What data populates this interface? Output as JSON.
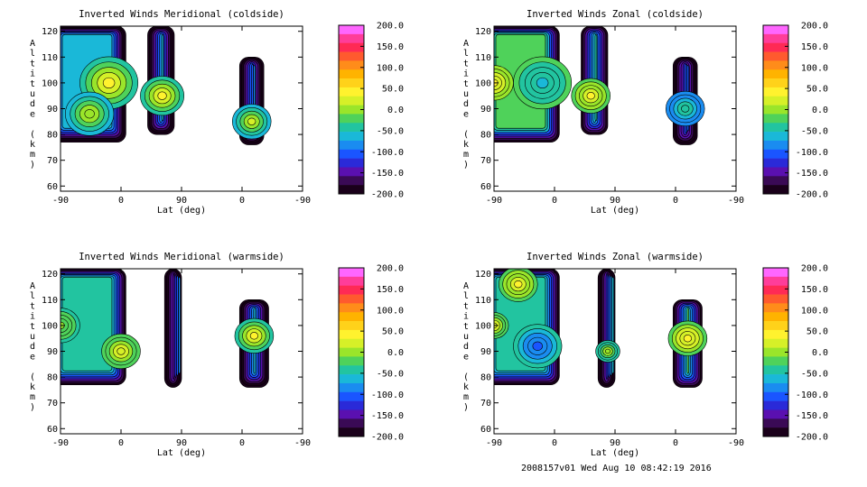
{
  "chart_data": [
    {
      "type": "heatmap",
      "title": "Inverted Winds Meridional (coldside)",
      "xlabel": "Lat (deg)",
      "ylabel": "Altitude (km)",
      "xticks": [
        "-90",
        "0",
        "90",
        "0",
        "-90"
      ],
      "yticks": [
        60,
        70,
        80,
        90,
        100,
        110,
        120
      ],
      "ylim": [
        58,
        122
      ],
      "colorbar": {
        "min": -200,
        "max": 200,
        "labels": [
          "200.0",
          "150.0",
          "100.0",
          "50.0",
          "0.0",
          "-50.0",
          "-100.0",
          "-150.0",
          "-200.0"
        ]
      },
      "blobs": [
        {
          "x0": -0.05,
          "x1": 0.27,
          "y0": 77,
          "y1": 122,
          "base": -70,
          "hot": [
            {
              "x": 0.2,
              "y": 100,
              "v": 40,
              "r": 0.12
            },
            {
              "x": 0.12,
              "y": 88,
              "v": 5,
              "r": 0.1
            }
          ]
        },
        {
          "x0": 0.36,
          "x1": 0.47,
          "y0": 80,
          "y1": 122,
          "base": -60,
          "hot": [
            {
              "x": 0.42,
              "y": 95,
              "v": 45,
              "r": 0.09
            }
          ]
        },
        {
          "x0": 0.74,
          "x1": 0.84,
          "y0": 76,
          "y1": 110,
          "base": -80,
          "hot": [
            {
              "x": 0.79,
              "y": 85,
              "v": 25,
              "r": 0.08
            }
          ]
        }
      ]
    },
    {
      "type": "heatmap",
      "title": "Inverted Winds Zonal (coldside)",
      "xlabel": "Lat (deg)",
      "ylabel": "Altitude (km)",
      "xticks": [
        "-90",
        "0",
        "90",
        "0",
        "-90"
      ],
      "yticks": [
        60,
        70,
        80,
        90,
        100,
        110,
        120
      ],
      "ylim": [
        58,
        122
      ],
      "colorbar": {
        "min": -200,
        "max": 200,
        "labels": [
          "200.0",
          "150.0",
          "100.0",
          "50.0",
          "0.0",
          "-50.0",
          "-100.0",
          "-150.0",
          "-200.0"
        ]
      },
      "blobs": [
        {
          "x0": -0.05,
          "x1": 0.27,
          "y0": 77,
          "y1": 122,
          "base": -20,
          "hot": [
            {
              "x": 0.2,
              "y": 100,
              "v": -60,
              "r": 0.12
            },
            {
              "x": 0.0,
              "y": 100,
              "v": 40,
              "r": 0.08
            }
          ]
        },
        {
          "x0": 0.36,
          "x1": 0.47,
          "y0": 80,
          "y1": 122,
          "base": -40,
          "hot": [
            {
              "x": 0.4,
              "y": 95,
              "v": 40,
              "r": 0.08
            }
          ]
        },
        {
          "x0": 0.74,
          "x1": 0.84,
          "y0": 76,
          "y1": 110,
          "base": -100,
          "hot": [
            {
              "x": 0.79,
              "y": 90,
              "v": -40,
              "r": 0.08
            }
          ]
        }
      ]
    },
    {
      "type": "heatmap",
      "title": "Inverted Winds Meridional (warmside)",
      "xlabel": "Lat (deg)",
      "ylabel": "Altitude (km)",
      "xticks": [
        "-90",
        "0",
        "90",
        "0",
        "-90"
      ],
      "yticks": [
        60,
        70,
        80,
        90,
        100,
        110,
        120
      ],
      "ylim": [
        58,
        122
      ],
      "colorbar": {
        "min": -200,
        "max": 200,
        "labels": [
          "200.0",
          "150.0",
          "100.0",
          "50.0",
          "0.0",
          "-50.0",
          "-100.0",
          "-150.0",
          "-200.0"
        ]
      },
      "blobs": [
        {
          "x0": -0.05,
          "x1": 0.27,
          "y0": 77,
          "y1": 122,
          "base": -40,
          "hot": [
            {
              "x": 0.25,
              "y": 90,
              "v": 30,
              "r": 0.08
            },
            {
              "x": 0.0,
              "y": 100,
              "v": -10,
              "r": 0.08
            }
          ]
        },
        {
          "x0": 0.43,
          "x1": 0.5,
          "y0": 76,
          "y1": 122,
          "base": -90,
          "hot": []
        },
        {
          "x0": 0.74,
          "x1": 0.86,
          "y0": 76,
          "y1": 110,
          "base": -60,
          "hot": [
            {
              "x": 0.8,
              "y": 96,
              "v": 40,
              "r": 0.08
            }
          ]
        }
      ]
    },
    {
      "type": "heatmap",
      "title": "Inverted Winds Zonal (warmside)",
      "xlabel": "Lat (deg)",
      "ylabel": "Altitude (km)",
      "xticks": [
        "-90",
        "0",
        "90",
        "0",
        "-90"
      ],
      "yticks": [
        60,
        70,
        80,
        90,
        100,
        110,
        120
      ],
      "ylim": [
        58,
        122
      ],
      "colorbar": {
        "min": -200,
        "max": 200,
        "labels": [
          "200.0",
          "150.0",
          "100.0",
          "50.0",
          "0.0",
          "-50.0",
          "-100.0",
          "-150.0",
          "-200.0"
        ]
      },
      "blobs": [
        {
          "x0": -0.05,
          "x1": 0.27,
          "y0": 77,
          "y1": 122,
          "base": -40,
          "hot": [
            {
              "x": 0.1,
              "y": 116,
              "v": 40,
              "r": 0.08
            },
            {
              "x": 0.18,
              "y": 92,
              "v": -100,
              "r": 0.1
            },
            {
              "x": 0.0,
              "y": 100,
              "v": 30,
              "r": 0.06
            }
          ]
        },
        {
          "x0": 0.43,
          "x1": 0.5,
          "y0": 76,
          "y1": 122,
          "base": -60,
          "hot": [
            {
              "x": 0.47,
              "y": 90,
              "v": 10,
              "r": 0.05
            }
          ]
        },
        {
          "x0": 0.74,
          "x1": 0.86,
          "y0": 76,
          "y1": 110,
          "base": -30,
          "hot": [
            {
              "x": 0.8,
              "y": 95,
              "v": 40,
              "r": 0.08
            }
          ]
        }
      ]
    }
  ],
  "footer": "2008157v01 Wed Aug 10 08:42:19 2016"
}
